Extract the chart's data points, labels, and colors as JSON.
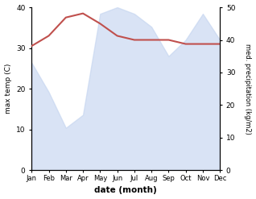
{
  "months": [
    "Jan",
    "Feb",
    "Mar",
    "Apr",
    "May",
    "Jun",
    "Jul",
    "Aug",
    "Sep",
    "Oct",
    "Nov",
    "Dec"
  ],
  "temperature": [
    30.5,
    33.0,
    37.5,
    38.5,
    36.0,
    33.0,
    32.0,
    32.0,
    32.0,
    31.0,
    31.0,
    31.0
  ],
  "precipitation": [
    33,
    24,
    13,
    17,
    48,
    50,
    48,
    44,
    35,
    40,
    48,
    40
  ],
  "temp_color": "#c0504d",
  "precip_fill_color": "#c5d5f0",
  "temp_ylim": [
    0,
    40
  ],
  "precip_ylim": [
    0,
    50
  ],
  "xlabel": "date (month)",
  "ylabel_left": "max temp (C)",
  "ylabel_right": "med. precipitation (kg/m2)",
  "background_color": "#ffffff",
  "temp_linewidth": 1.5,
  "precip_alpha": 0.65
}
